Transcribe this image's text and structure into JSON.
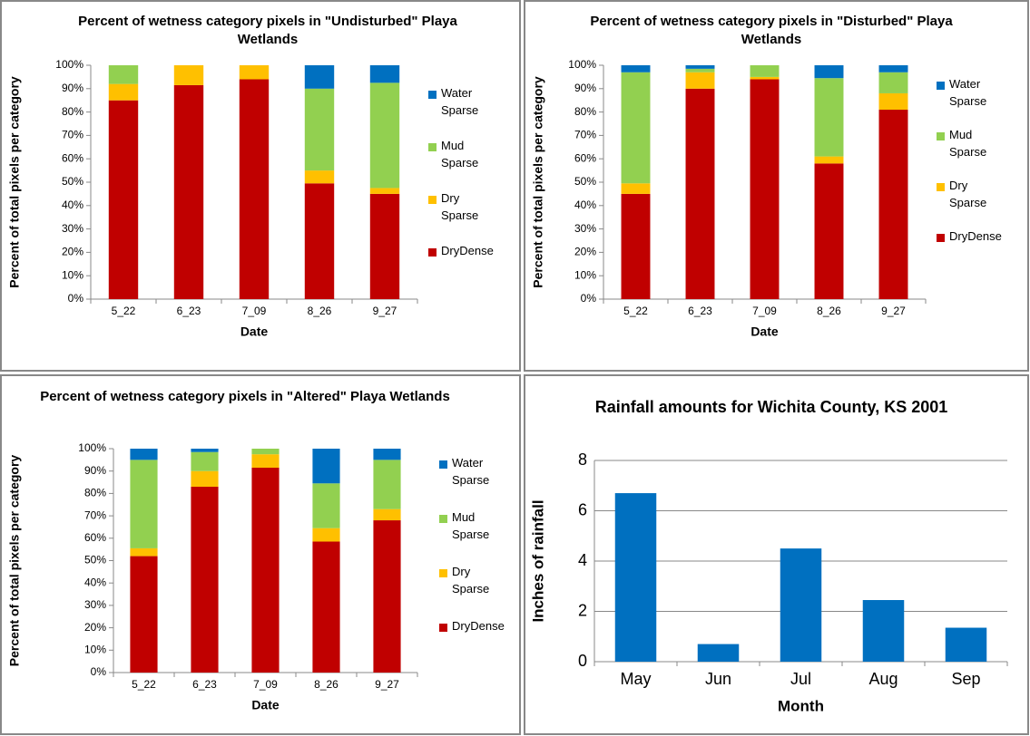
{
  "chart_data": [
    {
      "type": "stacked_bar",
      "title": "Percent of wetness category pixels in \"Undisturbed\" Playa Wetlands",
      "x_label": "Date",
      "y_label": "Percent of total pixels per category",
      "categories": [
        "5_22",
        "6_23",
        "7_09",
        "8_26",
        "9_27"
      ],
      "series": [
        {
          "name": "DryDense",
          "color": "#c00000",
          "values": [
            85,
            91.5,
            94,
            49.5,
            45
          ]
        },
        {
          "name": "Dry Sparse",
          "color": "#ffc000",
          "values": [
            7,
            8.5,
            6,
            5.5,
            2.5
          ]
        },
        {
          "name": "Mud Sparse",
          "color": "#92d050",
          "values": [
            8,
            0,
            0,
            35,
            45
          ]
        },
        {
          "name": "Water Sparse",
          "color": "#0070c0",
          "values": [
            0,
            0,
            0,
            10,
            7.5
          ]
        }
      ],
      "ylim": [
        0,
        100
      ],
      "yticks": [
        {
          "value": 0,
          "label": "0%"
        },
        {
          "value": 10,
          "label": "10%"
        },
        {
          "value": 20,
          "label": "20%"
        },
        {
          "value": 30,
          "label": "30%"
        },
        {
          "value": 40,
          "label": "40%"
        },
        {
          "value": 50,
          "label": "50%"
        },
        {
          "value": 60,
          "label": "60%"
        },
        {
          "value": 70,
          "label": "70%"
        },
        {
          "value": 80,
          "label": "80%"
        },
        {
          "value": 90,
          "label": "90%"
        },
        {
          "value": 100,
          "label": "100%"
        }
      ],
      "legend": "right",
      "grid": false
    },
    {
      "type": "stacked_bar",
      "title": "Percent of wetness category pixels in \"Disturbed\" Playa Wetlands",
      "x_label": "Date",
      "y_label": "Percent of total pixels per category",
      "categories": [
        "5_22",
        "6_23",
        "7_09",
        "8_26",
        "9_27"
      ],
      "series": [
        {
          "name": "DryDense",
          "color": "#c00000",
          "values": [
            45,
            90,
            94,
            58,
            81
          ]
        },
        {
          "name": "Dry Sparse",
          "color": "#ffc000",
          "values": [
            4.5,
            7,
            1,
            3,
            7
          ]
        },
        {
          "name": "Mud Sparse",
          "color": "#92d050",
          "values": [
            47.5,
            1.5,
            5,
            33.5,
            9
          ]
        },
        {
          "name": "Water Sparse",
          "color": "#0070c0",
          "values": [
            3,
            1.5,
            0,
            5.5,
            3
          ]
        }
      ],
      "ylim": [
        0,
        100
      ],
      "yticks": [
        {
          "value": 0,
          "label": "0%"
        },
        {
          "value": 10,
          "label": "10%"
        },
        {
          "value": 20,
          "label": "20%"
        },
        {
          "value": 30,
          "label": "30%"
        },
        {
          "value": 40,
          "label": "40%"
        },
        {
          "value": 50,
          "label": "50%"
        },
        {
          "value": 60,
          "label": "60%"
        },
        {
          "value": 70,
          "label": "70%"
        },
        {
          "value": 80,
          "label": "80%"
        },
        {
          "value": 90,
          "label": "90%"
        },
        {
          "value": 100,
          "label": "100%"
        }
      ],
      "legend": "right",
      "grid": false
    },
    {
      "type": "stacked_bar",
      "title": "Percent of wetness category pixels in \"Altered\" Playa Wetlands",
      "x_label": "Date",
      "y_label": "Percent of total pixels per category",
      "categories": [
        "5_22",
        "6_23",
        "7_09",
        "8_26",
        "9_27"
      ],
      "series": [
        {
          "name": "DryDense",
          "color": "#c00000",
          "values": [
            52,
            83,
            91.5,
            58.5,
            68
          ]
        },
        {
          "name": "Dry Sparse",
          "color": "#ffc000",
          "values": [
            3.5,
            7,
            6,
            6,
            5
          ]
        },
        {
          "name": "Mud Sparse",
          "color": "#92d050",
          "values": [
            39.5,
            8.5,
            2.5,
            20,
            22
          ]
        },
        {
          "name": "Water Sparse",
          "color": "#0070c0",
          "values": [
            5,
            1.5,
            0,
            15.5,
            5
          ]
        }
      ],
      "ylim": [
        0,
        100
      ],
      "yticks": [
        {
          "value": 0,
          "label": "0%"
        },
        {
          "value": 10,
          "label": "10%"
        },
        {
          "value": 20,
          "label": "20%"
        },
        {
          "value": 30,
          "label": "30%"
        },
        {
          "value": 40,
          "label": "40%"
        },
        {
          "value": 50,
          "label": "50%"
        },
        {
          "value": 60,
          "label": "60%"
        },
        {
          "value": 70,
          "label": "70%"
        },
        {
          "value": 80,
          "label": "80%"
        },
        {
          "value": 90,
          "label": "90%"
        },
        {
          "value": 100,
          "label": "100%"
        }
      ],
      "legend": "right",
      "grid": false
    },
    {
      "type": "bar",
      "title": "Rainfall amounts for Wichita County, KS 2001",
      "x_label": "Month",
      "y_label": "Inches of rainfall",
      "categories": [
        "May",
        "Jun",
        "Jul",
        "Aug",
        "Sep"
      ],
      "values": [
        6.7,
        0.7,
        4.5,
        2.45,
        1.35
      ],
      "color": "#0070c0",
      "ylim": [
        0,
        8
      ],
      "yticks": [
        0,
        2,
        4,
        6,
        8
      ],
      "grid": true
    }
  ]
}
